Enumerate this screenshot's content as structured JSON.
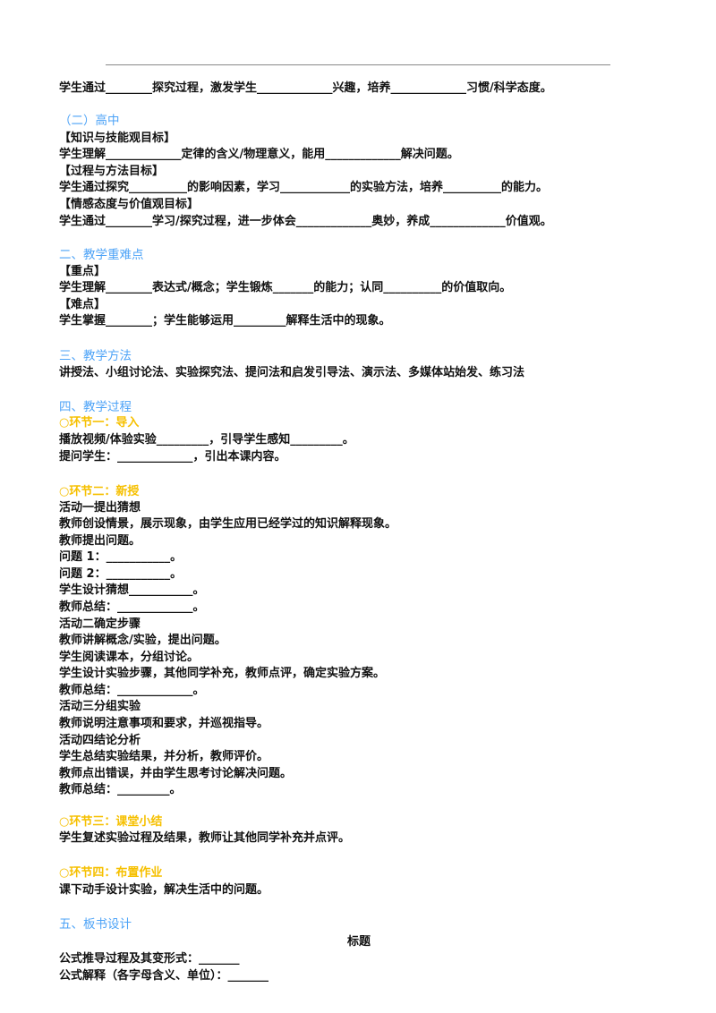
{
  "colors": {
    "heading": "#4da3f7",
    "step": "#f6c000",
    "text": "#111111"
  },
  "lines": [
    {
      "kind": "p",
      "text": "学生通过________探究过程，激发学生_____________兴趣，培养_____________习惯/科学态度。"
    },
    {
      "kind": "h",
      "text": "（二）高中"
    },
    {
      "kind": "p",
      "text": "【知识与技能观目标】"
    },
    {
      "kind": "p",
      "text": "学生理解_____________定律的含义/物理意义，能用_____________解决问题。"
    },
    {
      "kind": "p",
      "text": "【过程与方法目标】"
    },
    {
      "kind": "p",
      "text": "学生通过探究__________的影响因素，学习____________的实验方法，培养__________的能力。"
    },
    {
      "kind": "p",
      "text": "【情感态度与价值观目标】"
    },
    {
      "kind": "p",
      "text": "学生通过________学习/探究过程，进一步体会_____________奥妙，养成_____________价值观。"
    },
    {
      "kind": "h",
      "text": "二、教学重难点"
    },
    {
      "kind": "p",
      "text": "【重点】"
    },
    {
      "kind": "p",
      "text": "学生理解________表达式/概念；学生锻炼_______的能力；认同__________的价值取向。"
    },
    {
      "kind": "p",
      "text": "【难点】"
    },
    {
      "kind": "p",
      "text": "学生掌握________；学生能够运用_________解释生活中的现象。"
    },
    {
      "kind": "h",
      "text": "三、教学方法"
    },
    {
      "kind": "p",
      "text": "讲授法、小组讨论法、实验探究法、提问法和启发引导法、演示法、多媒体站始发、练习法"
    },
    {
      "kind": "h",
      "text": "四、教学过程"
    },
    {
      "kind": "s",
      "text": "○环节一：导入"
    },
    {
      "kind": "p",
      "text": "播放视频/体验实验_________，引导学生感知_________。"
    },
    {
      "kind": "p",
      "text": "提问学生：_____________，引出本课内容。"
    },
    {
      "kind": "s",
      "text": "○环节二：新授"
    },
    {
      "kind": "p",
      "text": "活动一提出猜想"
    },
    {
      "kind": "p",
      "text": "教师创设情景，展示现象，由学生应用已经学过的知识解释现象。"
    },
    {
      "kind": "p",
      "text": "教师提出问题。"
    },
    {
      "kind": "p",
      "text": "问题 1：___________。"
    },
    {
      "kind": "p",
      "text": "问题 2：___________。"
    },
    {
      "kind": "p",
      "text": "学生设计猜想___________。"
    },
    {
      "kind": "p",
      "text": "教师总结：_____________。"
    },
    {
      "kind": "p",
      "text": "活动二确定步骤"
    },
    {
      "kind": "p",
      "text": "教师讲解概念/实验，提出问题。"
    },
    {
      "kind": "p",
      "text": "学生阅读课本，分组讨论。"
    },
    {
      "kind": "p",
      "text": "学生设计实验步骤，其他同学补充，教师点评，确定实验方案。"
    },
    {
      "kind": "p",
      "text": "教师总结：_____________。"
    },
    {
      "kind": "p",
      "text": "活动三分组实验"
    },
    {
      "kind": "p",
      "text": "教师说明注意事项和要求，并巡视指导。"
    },
    {
      "kind": "p",
      "text": "活动四结论分析"
    },
    {
      "kind": "p",
      "text": "学生总结实验结果，并分析，教师评价。"
    },
    {
      "kind": "p",
      "text": "教师点出错误，并由学生思考讨论解决问题。"
    },
    {
      "kind": "p",
      "text": "教师总结：_________。"
    },
    {
      "kind": "s",
      "text": "○环节三：课堂小结"
    },
    {
      "kind": "p",
      "text": "学生复述实验过程及结果，教师让其他同学补充并点评。"
    },
    {
      "kind": "s",
      "text": "○环节四：布置作业"
    },
    {
      "kind": "p",
      "text": "课下动手设计实验，解决生活中的问题。"
    },
    {
      "kind": "h",
      "text": "五、板书设计"
    },
    {
      "kind": "c",
      "text": "标题"
    },
    {
      "kind": "p",
      "text": "公式推导过程及其变形式：_______"
    },
    {
      "kind": "p",
      "text": "公式解释（各字母含义、单位）：_______"
    }
  ]
}
